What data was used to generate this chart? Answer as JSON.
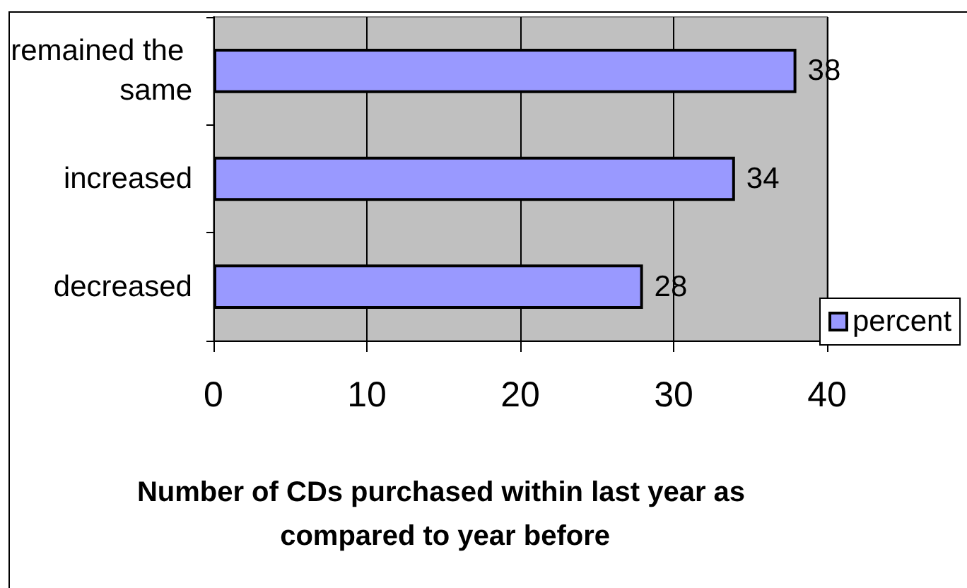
{
  "chart_data": {
    "type": "bar",
    "orientation": "horizontal",
    "categories": [
      "remained the same",
      "increased",
      "decreased"
    ],
    "series": [
      {
        "name": "percent",
        "color": "#9999ff",
        "values": [
          38,
          34,
          28
        ]
      }
    ],
    "xlabel": "Number of CDs purchased within last year as compared to year before",
    "xlim": [
      0,
      40
    ],
    "xticks": [
      0,
      10,
      20,
      30,
      40
    ],
    "grid": "x",
    "legend": "bottom right",
    "data_labels": true
  }
}
